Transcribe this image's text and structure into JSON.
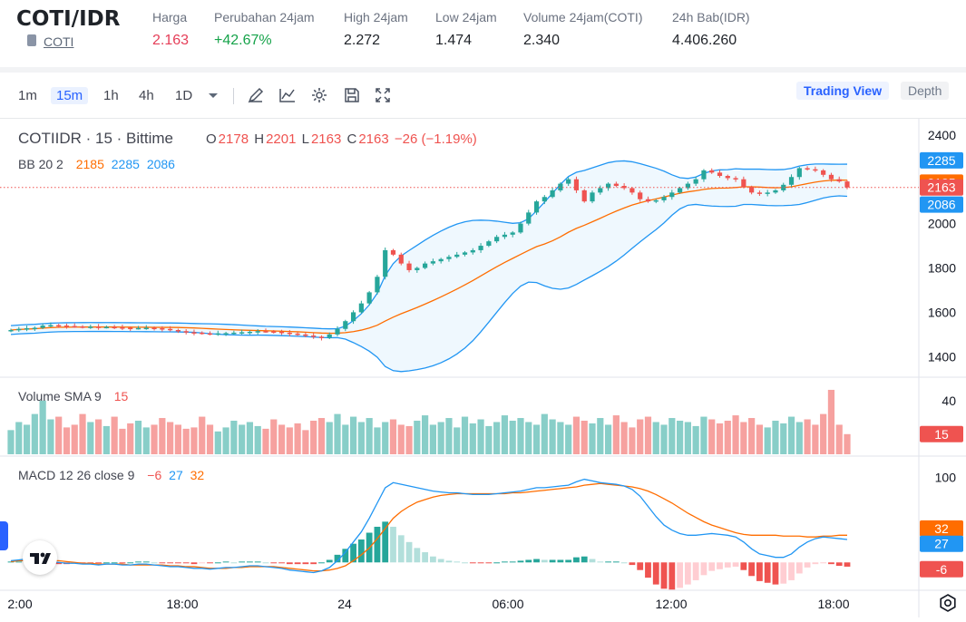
{
  "ticker": {
    "pair": "COTI/IDR",
    "asset_link": "COTI",
    "stats": [
      {
        "label": "Harga",
        "value": "2.163",
        "color": "#e53e58"
      },
      {
        "label": "Perubahan 24jam",
        "value": "+42.67%",
        "color": "#16a34a"
      },
      {
        "label": "High 24jam",
        "value": "2.272",
        "color": "#1f2329"
      },
      {
        "label": "Low 24jam",
        "value": "1.474",
        "color": "#1f2329"
      },
      {
        "label": "Volume 24jam(COTI)",
        "value": "2.340",
        "color": "#1f2329"
      },
      {
        "label": "24h Bab(IDR)",
        "value": "4.406.260",
        "color": "#1f2329"
      }
    ]
  },
  "toolbar": {
    "timeframes": [
      "1m",
      "15m",
      "1h",
      "4h",
      "1D"
    ],
    "active_timeframe": "15m",
    "icons": [
      "chevron-down-icon",
      "draw-icon",
      "indicator-icon",
      "gear-icon",
      "save-icon",
      "fullscreen-icon"
    ],
    "trading_view_label": "Trading View",
    "depth_label": "Depth"
  },
  "legend": {
    "symbol": "COTIIDR · 15 · Bittime",
    "o_label": "O",
    "o_value": "2178",
    "h_label": "H",
    "h_value": "2201",
    "l_label": "L",
    "l_value": "2163",
    "c_label": "C",
    "c_value": "2163",
    "change": "−26 (−1.19%)",
    "bb_label": "BB 20 2",
    "bb_basis": "2185",
    "bb_upper": "2285",
    "bb_lower": "2086",
    "vol_label": "Volume SMA 9",
    "vol_value": "15",
    "macd_label": "MACD 12 26 close 9",
    "macd_hist": "−6",
    "macd_line": "27",
    "macd_signal": "32"
  },
  "colors": {
    "up": "#26a69a",
    "down": "#ef5350",
    "bb_band": "#2196f3",
    "bb_basis": "#ff6d00",
    "macd_line": "#2196f3",
    "signal_line": "#ff6d00"
  },
  "chart_data": {
    "type": "candlestick",
    "interval": "15",
    "price_axis": {
      "ticks": [
        "2400",
        "2000",
        "1800",
        "1600",
        "1400"
      ],
      "range": [
        1340,
        2440
      ]
    },
    "price_badges": {
      "bb_upper": "2285",
      "bb_basis": "2185",
      "last_price": "2163",
      "bb_lower": "2086"
    },
    "volume_axis": {
      "ticks": [
        "40"
      ],
      "badge": "15"
    },
    "macd_axis": {
      "ticks": [
        "100"
      ],
      "badges": {
        "signal": "32",
        "macd": "27",
        "hist": "-6"
      }
    },
    "time_axis": [
      "2:00",
      "18:00",
      "24",
      "06:00",
      "12:00",
      "18:00"
    ],
    "close_values": [
      1520,
      1525,
      1528,
      1530,
      1540,
      1542,
      1540,
      1538,
      1536,
      1535,
      1535,
      1533,
      1534,
      1532,
      1530,
      1528,
      1529,
      1530,
      1528,
      1525,
      1520,
      1515,
      1510,
      1508,
      1505,
      1504,
      1505,
      1506,
      1508,
      1510,
      1512,
      1515,
      1514,
      1512,
      1508,
      1504,
      1500,
      1495,
      1490,
      1485,
      1500,
      1525,
      1560,
      1600,
      1640,
      1690,
      1760,
      1880,
      1860,
      1820,
      1790,
      1800,
      1820,
      1830,
      1840,
      1850,
      1860,
      1870,
      1880,
      1900,
      1920,
      1940,
      1950,
      1960,
      2000,
      2050,
      2100,
      2120,
      2150,
      2180,
      2200,
      2150,
      2100,
      2140,
      2160,
      2180,
      2170,
      2160,
      2140,
      2110,
      2100,
      2105,
      2120,
      2140,
      2160,
      2180,
      2200,
      2240,
      2230,
      2215,
      2205,
      2200,
      2165,
      2140,
      2135,
      2140,
      2150,
      2175,
      2210,
      2250,
      2245,
      2240,
      2220,
      2200,
      2190,
      2163
    ],
    "volume_values": [
      18,
      24,
      22,
      30,
      40,
      26,
      28,
      20,
      22,
      30,
      24,
      26,
      21,
      28,
      19,
      23,
      25,
      20,
      22,
      27,
      24,
      22,
      19,
      20,
      28,
      22,
      17,
      20,
      25,
      22,
      24,
      21,
      19,
      26,
      22,
      20,
      23,
      18,
      25,
      27,
      24,
      30,
      22,
      28,
      24,
      27,
      20,
      24,
      26,
      22,
      21,
      25,
      29,
      22,
      24,
      27,
      20,
      28,
      23,
      26,
      21,
      24,
      29,
      25,
      27,
      24,
      22,
      30,
      26,
      24,
      22,
      28,
      25,
      23,
      27,
      22,
      29,
      24,
      20,
      26,
      28,
      24,
      22,
      27,
      25,
      24,
      21,
      28,
      26,
      23,
      25,
      29,
      24,
      27,
      22,
      20,
      25,
      23,
      28,
      24,
      26,
      22,
      30,
      48,
      22,
      15
    ],
    "macd_line": [
      2,
      3,
      4,
      3,
      2,
      1,
      0,
      -1,
      -1,
      -2,
      -2,
      -3,
      -2,
      -2,
      -3,
      -3,
      -2,
      -2,
      -3,
      -4,
      -5,
      -5,
      -6,
      -7,
      -7,
      -8,
      -7,
      -6,
      -6,
      -5,
      -4,
      -4,
      -5,
      -6,
      -7,
      -9,
      -10,
      -11,
      -12,
      -10,
      -6,
      2,
      12,
      24,
      36,
      52,
      70,
      88,
      94,
      92,
      90,
      88,
      86,
      84,
      83,
      82,
      82,
      81,
      80,
      80,
      80,
      81,
      82,
      83,
      84,
      86,
      88,
      88,
      89,
      90,
      91,
      95,
      98,
      96,
      94,
      93,
      92,
      90,
      86,
      78,
      66,
      54,
      44,
      38,
      34,
      32,
      32,
      33,
      34,
      33,
      32,
      30,
      24,
      16,
      10,
      8,
      6,
      6,
      10,
      18,
      24,
      28,
      30,
      29,
      28,
      27
    ],
    "signal_line": [
      1,
      2,
      2,
      3,
      3,
      2,
      2,
      1,
      0,
      -1,
      -1,
      -2,
      -2,
      -2,
      -2,
      -3,
      -3,
      -3,
      -3,
      -3,
      -4,
      -4,
      -5,
      -5,
      -6,
      -7,
      -7,
      -7,
      -6,
      -6,
      -5,
      -5,
      -5,
      -5,
      -6,
      -7,
      -8,
      -9,
      -10,
      -10,
      -9,
      -7,
      -4,
      2,
      9,
      17,
      28,
      40,
      52,
      60,
      66,
      71,
      74,
      77,
      79,
      80,
      81,
      81,
      81,
      81,
      81,
      81,
      81,
      82,
      82,
      83,
      84,
      85,
      86,
      87,
      88,
      89,
      91,
      92,
      93,
      92,
      91,
      90,
      89,
      87,
      84,
      80,
      75,
      70,
      64,
      58,
      53,
      48,
      44,
      41,
      38,
      35,
      33,
      32,
      32,
      32,
      32,
      31,
      31,
      31,
      30,
      30,
      31,
      31,
      32,
      32
    ]
  }
}
